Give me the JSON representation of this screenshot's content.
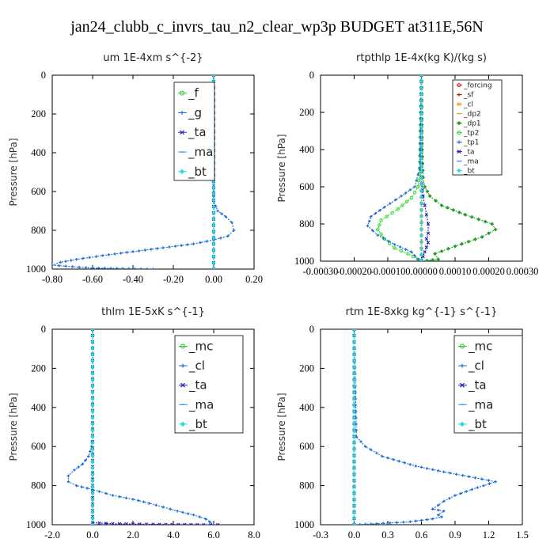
{
  "figure_title": "jan24_clubb_c_invrs_tau_n2_clear_wp3p  BUDGET at311E,56N",
  "colors": {
    "mc": "#22c422",
    "f": "#22c422",
    "dp1": "#22a022",
    "tp2": "#33dd33",
    "cl": "#1a6ad8",
    "g": "#1a6ad8",
    "tp1": "#1a6ad8",
    "ta": "#2222b8",
    "ma": "#3399ff",
    "bt": "#22dddd",
    "forcing": "#ee2222",
    "sf": "#cc1111",
    "dp2": "#f2a024"
  },
  "chart_data": [
    {
      "type": "line",
      "title": "um   1E-4xm s^{-2}",
      "ylabel": "Pressure [hPa]",
      "xlim": [
        -0.8,
        0.2
      ],
      "ylim": [
        1000,
        0
      ],
      "xticks": [
        "-0.80",
        "-0.60",
        "-0.40",
        "-0.20",
        "0.00",
        "0.20"
      ],
      "yticks": [
        "0",
        "200",
        "400",
        "600",
        "800",
        "1000"
      ],
      "legend": {
        "style": "big",
        "location": "top-right",
        "entries": [
          "_f",
          "_g",
          "_ta",
          "_ma",
          "_bt"
        ]
      },
      "series": [
        {
          "name": "_f",
          "color_key": "f",
          "x": [
            0,
            0
          ],
          "y": [
            0,
            1000
          ]
        },
        {
          "name": "_g",
          "color_key": "g",
          "x": [
            0,
            0,
            0,
            0,
            0.02,
            0.06,
            0.09,
            0.1,
            0.07,
            0,
            -0.1,
            -0.25,
            -0.4,
            -0.55,
            -0.68,
            -0.76,
            -0.8,
            -0.6,
            -0.3
          ],
          "y": [
            0,
            500,
            600,
            650,
            700,
            730,
            760,
            800,
            830,
            850,
            870,
            890,
            910,
            930,
            950,
            965,
            980,
            995,
            1000
          ]
        },
        {
          "name": "_ta",
          "color_key": "ta",
          "x": [
            0,
            0
          ],
          "y": [
            0,
            1000
          ]
        },
        {
          "name": "_ma",
          "color_key": "ma",
          "x": [
            0,
            0
          ],
          "y": [
            0,
            1000
          ]
        },
        {
          "name": "_bt",
          "color_key": "bt",
          "x": [
            0,
            0
          ],
          "y": [
            0,
            1000
          ]
        }
      ]
    },
    {
      "type": "line",
      "title": "rtpthlp   1E-4x(kg K)/(kg s)",
      "ylabel": "Pressure [hPa]",
      "xlim": [
        -0.0003,
        0.0003
      ],
      "ylim": [
        1000,
        0
      ],
      "xticks": [
        "-0.00030",
        "-0.00020",
        "-0.00010",
        "0.00000",
        "0.00010",
        "0.00020",
        "0.00030"
      ],
      "yticks": [
        "0",
        "200",
        "400",
        "600",
        "800",
        "1000"
      ],
      "legend": {
        "style": "small",
        "location": "top-right",
        "entries": [
          "_forcing",
          "_sf",
          "_cl",
          "_dp2",
          "_dp1",
          "_tp2",
          "_tp1",
          "_ta",
          "_ma",
          "_bt"
        ]
      },
      "series": [
        {
          "name": "_forcing",
          "color_key": "forcing",
          "x": [
            0,
            0
          ],
          "y": [
            0,
            1000
          ]
        },
        {
          "name": "_sf",
          "color_key": "sf",
          "x": [
            0,
            0
          ],
          "y": [
            0,
            1000
          ]
        },
        {
          "name": "_cl",
          "color_key": "dp2",
          "x": [
            0,
            0
          ],
          "y": [
            0,
            1000
          ]
        },
        {
          "name": "_dp2",
          "color_key": "dp2",
          "x": [
            0,
            0
          ],
          "y": [
            0,
            1000
          ]
        },
        {
          "name": "_dp1",
          "color_key": "dp1",
          "x": [
            0,
            2e-06,
            5e-06,
            1e-05,
            2.5e-05,
            6e-05,
            0.00013,
            0.00021,
            0.00022,
            0.00018,
            0.0001,
            4e-05,
            5e-05,
            0.0
          ],
          "y": [
            0,
            400,
            550,
            600,
            650,
            700,
            750,
            800,
            830,
            870,
            920,
            960,
            990,
            1000
          ]
        },
        {
          "name": "_tp2",
          "color_key": "tp2",
          "x": [
            0,
            -5e-06,
            -1e-05,
            -3e-05,
            -7e-05,
            -0.00012,
            -0.00013,
            -0.00011,
            -8e-05,
            -4e-05,
            -1e-05,
            0
          ],
          "y": [
            0,
            500,
            600,
            660,
            720,
            780,
            830,
            880,
            930,
            960,
            990,
            1000
          ]
        },
        {
          "name": "_tp1",
          "color_key": "tp1",
          "x": [
            0,
            -5e-06,
            -2e-05,
            -6e-05,
            -0.00011,
            -0.00015,
            -0.00016,
            -0.00013,
            -8e-05,
            -3e-05,
            -1e-05,
            0
          ],
          "y": [
            0,
            500,
            600,
            650,
            710,
            760,
            810,
            860,
            910,
            950,
            990,
            1000
          ]
        },
        {
          "name": "_ta",
          "color_key": "ta",
          "x": [
            0,
            0,
            5e-06,
            1e-05,
            1.5e-05,
            2e-05,
            2e-05,
            1.5e-05,
            2e-05,
            1e-05,
            0
          ],
          "y": [
            0,
            550,
            650,
            700,
            750,
            800,
            850,
            880,
            900,
            950,
            1000
          ]
        },
        {
          "name": "_ma",
          "color_key": "ma",
          "x": [
            0,
            0
          ],
          "y": [
            0,
            1000
          ]
        },
        {
          "name": "_bt",
          "color_key": "bt",
          "x": [
            0,
            0
          ],
          "y": [
            0,
            1000
          ]
        }
      ]
    },
    {
      "type": "line",
      "title": "thlm   1E-5xK s^{-1}",
      "ylabel": "Pressure [hPa]",
      "xlim": [
        -2.0,
        8.0
      ],
      "ylim": [
        1000,
        0
      ],
      "xticks": [
        "-2.0",
        "0.0",
        "2.0",
        "4.0",
        "6.0",
        "8.0"
      ],
      "yticks": [
        "0",
        "200",
        "400",
        "600",
        "800",
        "1000"
      ],
      "legend": {
        "style": "big",
        "location": "top-right",
        "entries": [
          "_mc",
          "_cl",
          "_ta",
          "_ma",
          "_bt"
        ]
      },
      "series": [
        {
          "name": "_mc",
          "color_key": "mc",
          "x": [
            0,
            0
          ],
          "y": [
            0,
            1000
          ]
        },
        {
          "name": "_cl",
          "color_key": "cl",
          "x": [
            0,
            0,
            -0.05,
            -0.2,
            -0.5,
            -0.9,
            -1.2,
            -1.2,
            -0.8,
            0,
            1,
            2,
            2.8,
            3.5,
            4.2,
            5,
            5.6,
            6
          ],
          "y": [
            0,
            550,
            600,
            650,
            690,
            720,
            750,
            780,
            800,
            820,
            850,
            870,
            890,
            910,
            930,
            950,
            970,
            1000
          ]
        },
        {
          "name": "_ta",
          "color_key": "ta",
          "x": [
            0,
            0,
            1,
            3,
            5.5,
            6.2
          ],
          "y": [
            0,
            990,
            995,
            998,
            1000,
            1000
          ]
        },
        {
          "name": "_ma",
          "color_key": "ma",
          "x": [
            0,
            0
          ],
          "y": [
            0,
            1000
          ]
        },
        {
          "name": "_bt",
          "color_key": "bt",
          "x": [
            0,
            0
          ],
          "y": [
            0,
            1000
          ]
        }
      ]
    },
    {
      "type": "line",
      "title": "rtm   1E-8xkg kg^{-1} s^{-1}",
      "ylabel": "Pressure [hPa]",
      "xlim": [
        -0.3,
        1.5
      ],
      "ylim": [
        1000,
        0
      ],
      "xticks": [
        "-0.3",
        "0.0",
        "0.3",
        "0.6",
        "0.9",
        "1.2",
        "1.5"
      ],
      "yticks": [
        "0",
        "200",
        "400",
        "600",
        "800",
        "1000"
      ],
      "legend": {
        "style": "big",
        "location": "top-right",
        "entries": [
          "_mc",
          "_cl",
          "_ta",
          "_ma",
          "_bt"
        ]
      },
      "series": [
        {
          "name": "_mc",
          "color_key": "mc",
          "x": [
            0,
            0
          ],
          "y": [
            0,
            1000
          ]
        },
        {
          "name": "_cl",
          "color_key": "cl",
          "x": [
            0,
            0.02,
            0.1,
            0.25,
            0.55,
            0.8,
            1.08,
            1.26,
            1.1,
            0.9,
            0.8,
            0.75,
            0.7,
            0.8,
            0.75,
            0.78,
            0.7,
            0.5,
            0.2,
            0
          ],
          "y": [
            0,
            550,
            600,
            650,
            700,
            730,
            760,
            780,
            810,
            850,
            880,
            900,
            920,
            930,
            950,
            960,
            970,
            985,
            995,
            1000
          ]
        },
        {
          "name": "_ta",
          "color_key": "ta",
          "x": [
            0,
            0
          ],
          "y": [
            0,
            1000
          ]
        },
        {
          "name": "_ma",
          "color_key": "ma",
          "x": [
            0,
            0
          ],
          "y": [
            0,
            1000
          ]
        },
        {
          "name": "_bt",
          "color_key": "bt",
          "x": [
            0,
            0
          ],
          "y": [
            0,
            1000
          ]
        }
      ]
    }
  ]
}
